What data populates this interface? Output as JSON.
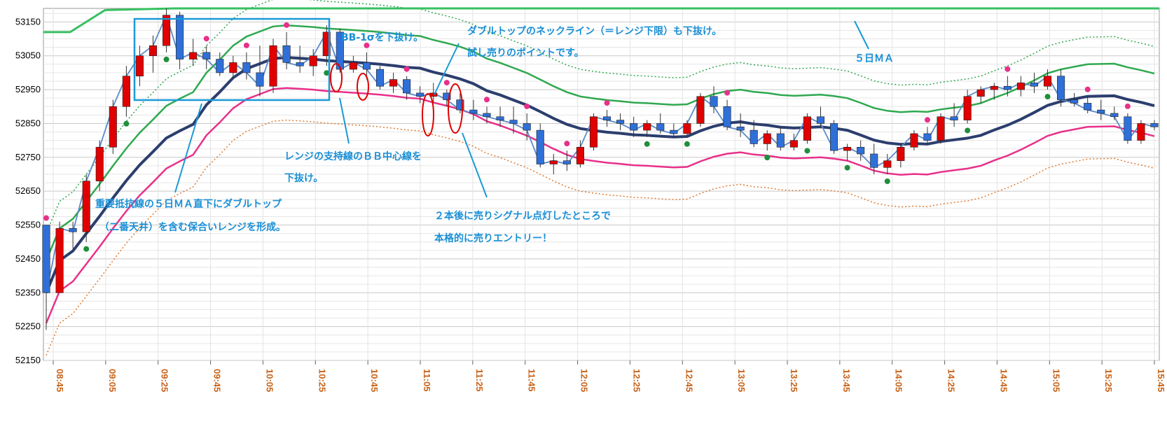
{
  "chart_data": {
    "type": "candlestick",
    "ylim": [
      52150,
      53190
    ],
    "y_ticks": [
      52150,
      52250,
      52350,
      52450,
      52550,
      52650,
      52750,
      52850,
      52950,
      53050,
      53150
    ],
    "x_ticks": [
      "08:45",
      "09:05",
      "09:25",
      "09:45",
      "10:05",
      "10:25",
      "10:45",
      "11:05",
      "11:25",
      "11:45",
      "12:05",
      "12:25",
      "12:45",
      "13:05",
      "13:25",
      "13:45",
      "14:05",
      "14:25",
      "14:45",
      "15:05",
      "15:25",
      "15:45"
    ],
    "grid": true,
    "candles": [
      [
        52550,
        52550,
        52240,
        52350
      ],
      [
        52350,
        52560,
        52350,
        52540
      ],
      [
        52540,
        52560,
        52480,
        52530
      ],
      [
        52530,
        52700,
        52500,
        52680
      ],
      [
        52680,
        52800,
        52650,
        52780
      ],
      [
        52780,
        52920,
        52760,
        52900
      ],
      [
        52900,
        53020,
        52870,
        52990
      ],
      [
        52990,
        53080,
        52960,
        53050
      ],
      [
        53050,
        53110,
        53000,
        53080
      ],
      [
        53080,
        53190,
        53060,
        53170
      ],
      [
        53170,
        53180,
        53010,
        53040
      ],
      [
        53040,
        53100,
        53020,
        53060
      ],
      [
        53060,
        53080,
        53010,
        53040
      ],
      [
        53040,
        53060,
        52990,
        53000
      ],
      [
        53000,
        53050,
        52980,
        53030
      ],
      [
        53030,
        53060,
        52980,
        53000
      ],
      [
        53000,
        53080,
        52930,
        52960
      ],
      [
        52960,
        53100,
        52940,
        53080
      ],
      [
        53080,
        53120,
        53010,
        53030
      ],
      [
        53030,
        53080,
        53000,
        53020
      ],
      [
        53020,
        53070,
        52990,
        53050
      ],
      [
        53050,
        53140,
        53020,
        53120
      ],
      [
        53120,
        53130,
        53000,
        53010
      ],
      [
        53010,
        53050,
        53000,
        53030
      ],
      [
        53030,
        53060,
        52980,
        53010
      ],
      [
        53010,
        53020,
        52950,
        52960
      ],
      [
        52960,
        53000,
        52940,
        52980
      ],
      [
        52980,
        52990,
        52920,
        52940
      ],
      [
        52940,
        52960,
        52910,
        52930
      ],
      [
        52930,
        52970,
        52910,
        52940
      ],
      [
        52940,
        52950,
        52900,
        52920
      ],
      [
        52920,
        52940,
        52880,
        52890
      ],
      [
        52890,
        52920,
        52860,
        52880
      ],
      [
        52880,
        52900,
        52850,
        52870
      ],
      [
        52870,
        52900,
        52840,
        52860
      ],
      [
        52860,
        52900,
        52820,
        52850
      ],
      [
        52850,
        52880,
        52800,
        52830
      ],
      [
        52830,
        52850,
        52720,
        52730
      ],
      [
        52730,
        52760,
        52700,
        52740
      ],
      [
        52740,
        52770,
        52710,
        52730
      ],
      [
        52730,
        52800,
        52720,
        52780
      ],
      [
        52780,
        52880,
        52770,
        52870
      ],
      [
        52870,
        52890,
        52840,
        52860
      ],
      [
        52860,
        52880,
        52830,
        52850
      ],
      [
        52850,
        52870,
        52810,
        52830
      ],
      [
        52830,
        52860,
        52810,
        52850
      ],
      [
        52850,
        52880,
        52820,
        52830
      ],
      [
        52830,
        52850,
        52810,
        52820
      ],
      [
        52820,
        52860,
        52810,
        52850
      ],
      [
        52850,
        52940,
        52840,
        52930
      ],
      [
        52930,
        52960,
        52880,
        52900
      ],
      [
        52900,
        52920,
        52830,
        52840
      ],
      [
        52840,
        52880,
        52810,
        52830
      ],
      [
        52830,
        52860,
        52780,
        52790
      ],
      [
        52790,
        52830,
        52770,
        52820
      ],
      [
        52820,
        52840,
        52770,
        52780
      ],
      [
        52780,
        52820,
        52770,
        52800
      ],
      [
        52800,
        52880,
        52790,
        52870
      ],
      [
        52870,
        52900,
        52840,
        52850
      ],
      [
        52850,
        52860,
        52760,
        52770
      ],
      [
        52770,
        52790,
        52740,
        52780
      ],
      [
        52780,
        52800,
        52740,
        52760
      ],
      [
        52760,
        52790,
        52700,
        52720
      ],
      [
        52720,
        52760,
        52700,
        52740
      ],
      [
        52740,
        52790,
        52720,
        52780
      ],
      [
        52780,
        52830,
        52770,
        52820
      ],
      [
        52820,
        52840,
        52790,
        52800
      ],
      [
        52800,
        52880,
        52790,
        52870
      ],
      [
        52870,
        52910,
        52840,
        52860
      ],
      [
        52860,
        52950,
        52850,
        52930
      ],
      [
        52930,
        52960,
        52910,
        52950
      ],
      [
        52950,
        52970,
        52920,
        52960
      ],
      [
        52960,
        52990,
        52930,
        52950
      ],
      [
        52950,
        52990,
        52930,
        52970
      ],
      [
        52970,
        53000,
        52940,
        52960
      ],
      [
        52960,
        53010,
        52950,
        52990
      ],
      [
        52990,
        53010,
        52900,
        52920
      ],
      [
        52920,
        52940,
        52900,
        52910
      ],
      [
        52910,
        52930,
        52880,
        52890
      ],
      [
        52890,
        52920,
        52860,
        52880
      ],
      [
        52880,
        52900,
        52860,
        52870
      ],
      [
        52870,
        52880,
        52790,
        52800
      ],
      [
        52800,
        52860,
        52790,
        52850
      ],
      [
        52850,
        52860,
        52830,
        52840
      ]
    ],
    "series": [
      {
        "name": "5日ＭＡ",
        "values": [
          53120,
          53150,
          53180,
          53190,
          53190
        ]
      }
    ],
    "annotations": {
      "a1_line1": "重要抵抗線の５日ＭＡ直下にダブルトップ",
      "a1_line2": "（二番天井）を含む保合いレンジを形成。",
      "a2": "BB-1σを下抜け。",
      "a3_line1": "ダブルトップのネックライン（＝レンジ下限）も下抜け。",
      "a3_line2": "試し売りのポイントです。",
      "a4_line1": "レンジの支持線のＢＢ中心線を",
      "a4_line2": "下抜け。",
      "a5_line1": "２本後に売りシグナル点灯したところで",
      "a5_line2": "本格的に売りエントリー！",
      "ma5_label": "５日ＭＡ"
    },
    "colors": {
      "up": "#e00000",
      "down": "#2f6fd8",
      "annotation": "#1a8fd6",
      "ma5": "#37c060",
      "bb_mid": "#2c3e6e",
      "bb_minus1": "#e8308a",
      "bb_upper": "#2fa84f",
      "bb_lower": "#e07a30"
    }
  }
}
